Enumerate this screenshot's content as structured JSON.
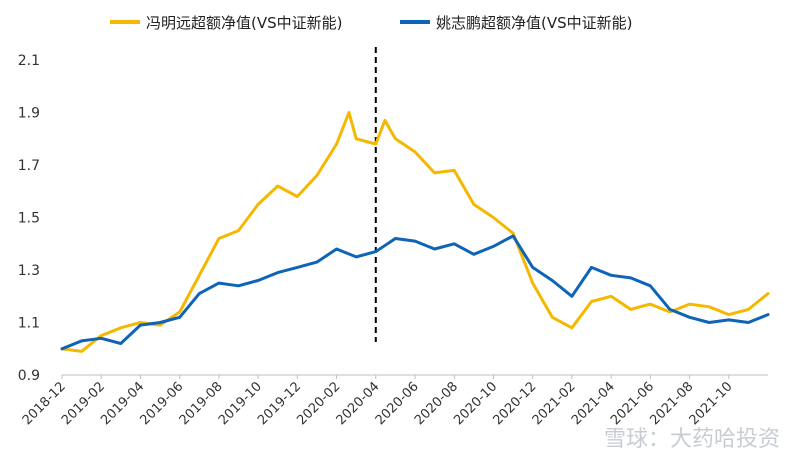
{
  "chart_data": {
    "type": "line",
    "title": "",
    "xlabel": "",
    "ylabel": "",
    "ylim": [
      0.9,
      2.1
    ],
    "yticks": [
      "0.9",
      "1.1",
      "1.3",
      "1.5",
      "1.7",
      "1.9",
      "2.1"
    ],
    "xticks": [
      "2018-12",
      "2019-02",
      "2019-04",
      "2019-06",
      "2019-08",
      "2019-10",
      "2019-12",
      "2020-02",
      "2020-04",
      "2020-06",
      "2020-08",
      "2020-10",
      "2020-12",
      "2021-02",
      "2021-04",
      "2021-06",
      "2021-08",
      "2021-10"
    ],
    "xrange": [
      "2018-12",
      "2021-12"
    ],
    "grid": false,
    "legend_position": "top",
    "vertical_marker": {
      "x": "2020-04",
      "style": "dashed",
      "color": "#000000"
    },
    "series": [
      {
        "name": "冯明远超额净值(VS中证新能)",
        "color": "#F5B800",
        "points": [
          [
            "2018-12",
            1.0
          ],
          [
            "2019-01",
            0.99
          ],
          [
            "2019-02",
            1.05
          ],
          [
            "2019-03",
            1.08
          ],
          [
            "2019-04",
            1.1
          ],
          [
            "2019-05",
            1.09
          ],
          [
            "2019-06",
            1.14
          ],
          [
            "2019-07",
            1.28
          ],
          [
            "2019-08",
            1.42
          ],
          [
            "2019-09",
            1.45
          ],
          [
            "2019-10",
            1.55
          ],
          [
            "2019-11",
            1.62
          ],
          [
            "2019-12",
            1.58
          ],
          [
            "2020-01",
            1.66
          ],
          [
            "2020-02",
            1.78
          ],
          [
            "2020-02-20",
            1.9
          ],
          [
            "2020-03",
            1.8
          ],
          [
            "2020-04",
            1.78
          ],
          [
            "2020-04-15",
            1.87
          ],
          [
            "2020-05",
            1.8
          ],
          [
            "2020-06",
            1.75
          ],
          [
            "2020-07",
            1.67
          ],
          [
            "2020-08",
            1.68
          ],
          [
            "2020-09",
            1.55
          ],
          [
            "2020-10",
            1.5
          ],
          [
            "2020-11",
            1.44
          ],
          [
            "2020-12",
            1.25
          ],
          [
            "2021-01",
            1.12
          ],
          [
            "2021-02",
            1.08
          ],
          [
            "2021-03",
            1.18
          ],
          [
            "2021-04",
            1.2
          ],
          [
            "2021-05",
            1.15
          ],
          [
            "2021-06",
            1.17
          ],
          [
            "2021-07",
            1.14
          ],
          [
            "2021-08",
            1.17
          ],
          [
            "2021-09",
            1.16
          ],
          [
            "2021-10",
            1.13
          ],
          [
            "2021-11",
            1.15
          ],
          [
            "2021-12",
            1.21
          ]
        ]
      },
      {
        "name": "姚志鹏超额净值(VS中证新能)",
        "color": "#0E64B6",
        "points": [
          [
            "2018-12",
            1.0
          ],
          [
            "2019-01",
            1.03
          ],
          [
            "2019-02",
            1.04
          ],
          [
            "2019-03",
            1.02
          ],
          [
            "2019-04",
            1.09
          ],
          [
            "2019-05",
            1.1
          ],
          [
            "2019-06",
            1.12
          ],
          [
            "2019-07",
            1.21
          ],
          [
            "2019-08",
            1.25
          ],
          [
            "2019-09",
            1.24
          ],
          [
            "2019-10",
            1.26
          ],
          [
            "2019-11",
            1.29
          ],
          [
            "2019-12",
            1.31
          ],
          [
            "2020-01",
            1.33
          ],
          [
            "2020-02",
            1.38
          ],
          [
            "2020-03",
            1.35
          ],
          [
            "2020-04",
            1.37
          ],
          [
            "2020-05",
            1.42
          ],
          [
            "2020-06",
            1.41
          ],
          [
            "2020-07",
            1.38
          ],
          [
            "2020-08",
            1.4
          ],
          [
            "2020-09",
            1.36
          ],
          [
            "2020-10",
            1.39
          ],
          [
            "2020-11",
            1.43
          ],
          [
            "2020-12",
            1.31
          ],
          [
            "2021-01",
            1.26
          ],
          [
            "2021-02",
            1.2
          ],
          [
            "2021-03",
            1.31
          ],
          [
            "2021-04",
            1.28
          ],
          [
            "2021-05",
            1.27
          ],
          [
            "2021-06",
            1.24
          ],
          [
            "2021-07",
            1.15
          ],
          [
            "2021-08",
            1.12
          ],
          [
            "2021-09",
            1.1
          ],
          [
            "2021-10",
            1.11
          ],
          [
            "2021-11",
            1.1
          ],
          [
            "2021-12",
            1.13
          ]
        ]
      }
    ]
  },
  "watermark": "雪球：大药哈投资"
}
